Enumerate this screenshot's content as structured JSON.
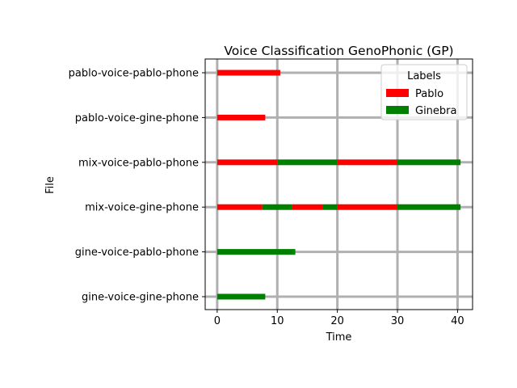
{
  "chart_data": {
    "type": "bar",
    "orientation": "horizontal-timeline",
    "title": "Voice Classification GenoPhonic (GP)",
    "xlabel": "Time",
    "ylabel": "File",
    "xlim": [
      -2,
      42.5
    ],
    "xticks": [
      0,
      10,
      20,
      30,
      40
    ],
    "grid": true,
    "legend": {
      "title": "Labels",
      "placement": "top-right",
      "entries": [
        {
          "name": "Pablo",
          "color": "#ff0000"
        },
        {
          "name": "Ginebra",
          "color": "#008000"
        }
      ]
    },
    "categories": [
      "pablo-voice-pablo-phone",
      "pablo-voice-gine-phone",
      "mix-voice-pablo-phone",
      "mix-voice-gine-phone",
      "gine-voice-pablo-phone",
      "gine-voice-gine-phone"
    ],
    "segments": [
      {
        "file": "pablo-voice-pablo-phone",
        "label": "Pablo",
        "start": 0,
        "end": 10.5
      },
      {
        "file": "pablo-voice-gine-phone",
        "label": "Pablo",
        "start": 0,
        "end": 8
      },
      {
        "file": "mix-voice-pablo-phone",
        "label": "Pablo",
        "start": 0,
        "end": 10
      },
      {
        "file": "mix-voice-pablo-phone",
        "label": "Ginebra",
        "start": 10,
        "end": 20
      },
      {
        "file": "mix-voice-pablo-phone",
        "label": "Pablo",
        "start": 20,
        "end": 30
      },
      {
        "file": "mix-voice-pablo-phone",
        "label": "Ginebra",
        "start": 30,
        "end": 40.5
      },
      {
        "file": "mix-voice-gine-phone",
        "label": "Pablo",
        "start": 0,
        "end": 7.5
      },
      {
        "file": "mix-voice-gine-phone",
        "label": "Ginebra",
        "start": 7.5,
        "end": 12.5
      },
      {
        "file": "mix-voice-gine-phone",
        "label": "Pablo",
        "start": 12.5,
        "end": 17.5
      },
      {
        "file": "mix-voice-gine-phone",
        "label": "Ginebra",
        "start": 17.5,
        "end": 20
      },
      {
        "file": "mix-voice-gine-phone",
        "label": "Pablo",
        "start": 20,
        "end": 30
      },
      {
        "file": "mix-voice-gine-phone",
        "label": "Ginebra",
        "start": 30,
        "end": 40.5
      },
      {
        "file": "gine-voice-pablo-phone",
        "label": "Ginebra",
        "start": 0,
        "end": 13
      },
      {
        "file": "gine-voice-gine-phone",
        "label": "Ginebra",
        "start": 0,
        "end": 8
      }
    ]
  }
}
